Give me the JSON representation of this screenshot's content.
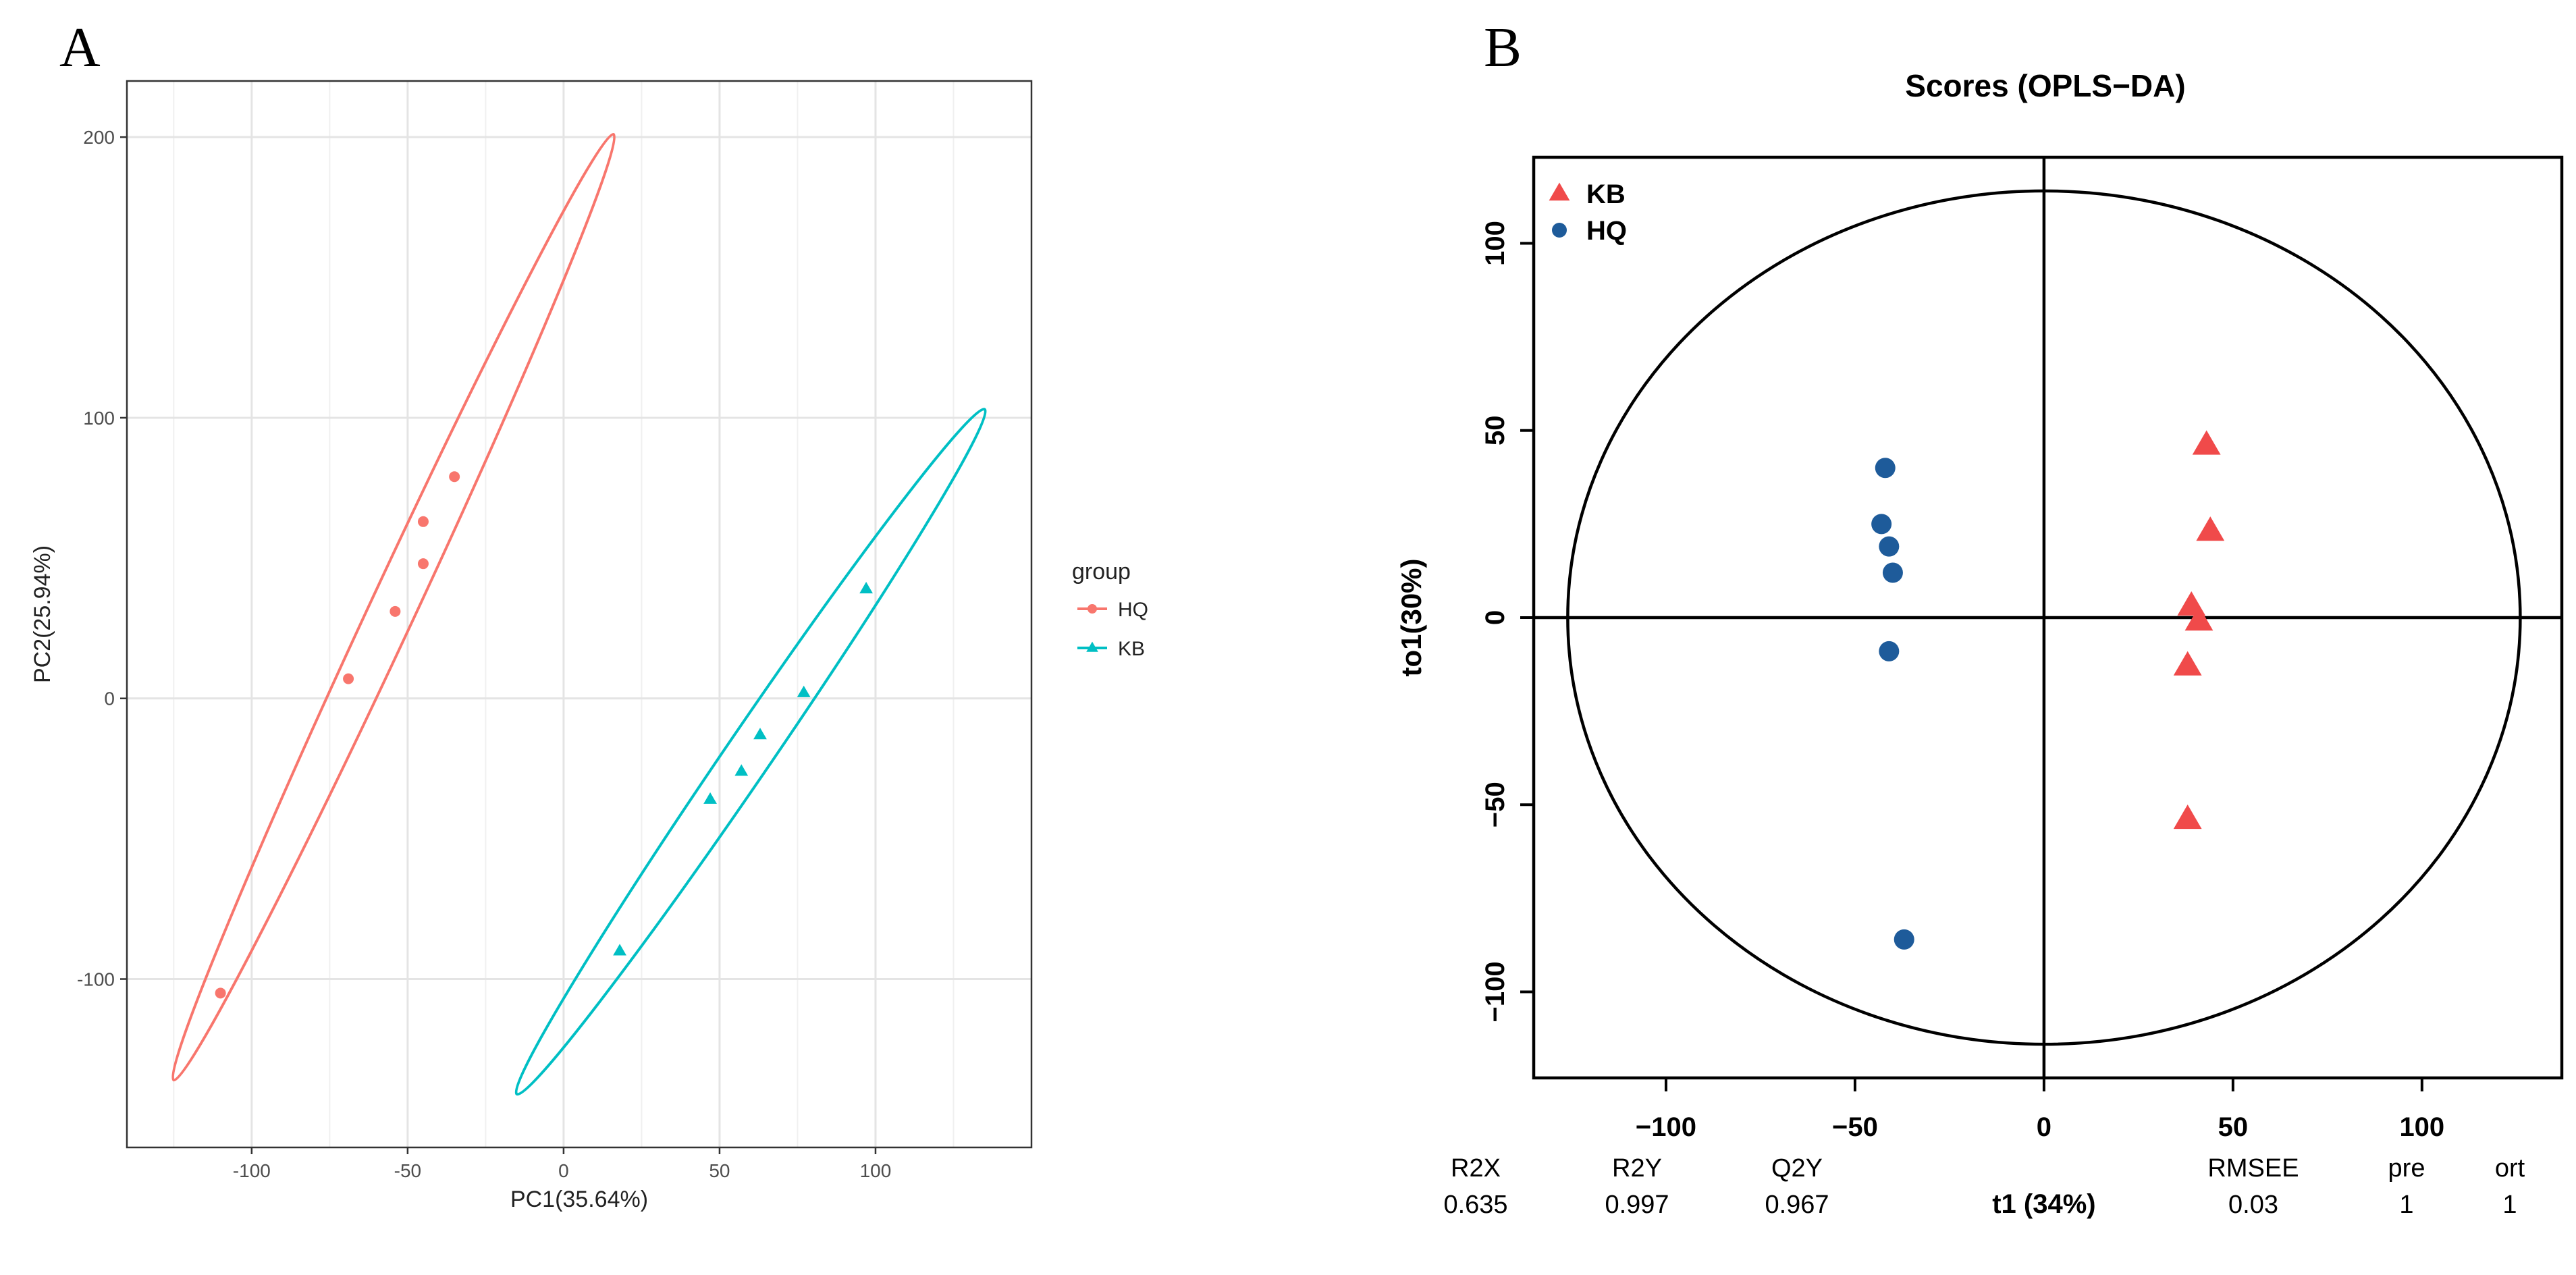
{
  "panels": {
    "a_letter": "A",
    "b_letter": "B"
  },
  "chart_data": [
    {
      "type": "scatter",
      "panel": "A",
      "title": "",
      "xlabel": "PC1(35.64%)",
      "ylabel": "PC2(25.94%)",
      "xlim": [
        -140,
        150
      ],
      "ylim": [
        -160,
        220
      ],
      "x_ticks": [
        -100,
        -50,
        0,
        50,
        100
      ],
      "y_ticks": [
        -100,
        0,
        100,
        200
      ],
      "x_tick_labels": [
        "-100",
        "-50",
        "0",
        "50",
        "100"
      ],
      "y_tick_labels": [
        "-100",
        "0",
        "100",
        "200"
      ],
      "grid": true,
      "legend": {
        "title": "group",
        "placement": "right",
        "entries": [
          "HQ",
          "KB"
        ]
      },
      "colors": {
        "HQ": "#F8766D",
        "KB": "#00BFC4"
      },
      "series": [
        {
          "name": "HQ",
          "marker": "circle",
          "points": [
            [
              -110,
              -105
            ],
            [
              -69,
              7
            ],
            [
              -54,
              31
            ],
            [
              -45,
              48
            ],
            [
              -45,
              63
            ],
            [
              -35,
              79
            ]
          ],
          "ellipse": [
            [
              -125,
              -136
            ],
            [
              16,
              201
            ]
          ]
        },
        {
          "name": "KB",
          "marker": "triangle",
          "points": [
            [
              18,
              -90
            ],
            [
              47,
              -36
            ],
            [
              57,
              -26
            ],
            [
              63,
              -13
            ],
            [
              77,
              2
            ],
            [
              97,
              39
            ]
          ],
          "ellipse": [
            [
              -15,
              -141
            ],
            [
              135,
              103
            ]
          ]
        }
      ]
    },
    {
      "type": "scatter",
      "panel": "B",
      "title": "Scores (OPLS−DA)",
      "xlabel": "t1 (34%)",
      "ylabel": "to1(30%)",
      "xlim": [
        -135,
        137
      ],
      "ylim": [
        -123,
        123
      ],
      "x_ticks": [
        -100,
        -50,
        0,
        50,
        100
      ],
      "y_ticks": [
        -100,
        -50,
        0,
        50,
        100
      ],
      "x_tick_labels": [
        "−100",
        "−50",
        "0",
        "50",
        "100"
      ],
      "y_tick_labels": [
        "−100",
        "−50",
        "0",
        "50",
        "100"
      ],
      "grid": false,
      "legend": {
        "placement": "top-left",
        "entries": [
          "KB",
          "HQ"
        ]
      },
      "colors": {
        "KB": "#F04A4A",
        "HQ": "#1E5B9A"
      },
      "series": [
        {
          "name": "KB",
          "marker": "triangle",
          "points": [
            [
              43,
              46
            ],
            [
              44,
              23
            ],
            [
              39,
              3
            ],
            [
              41,
              -1
            ],
            [
              38,
              -13
            ],
            [
              38,
              -54
            ]
          ]
        },
        {
          "name": "HQ",
          "marker": "circle",
          "points": [
            [
              -42,
              40
            ],
            [
              -43,
              25
            ],
            [
              -41,
              19
            ],
            [
              -40,
              12
            ],
            [
              -41,
              -9
            ],
            [
              -37,
              -86
            ]
          ]
        }
      ],
      "confidence_ellipse": {
        "rx": 126,
        "ry": 114
      },
      "stats": [
        {
          "label": "R2X",
          "value": "0.635"
        },
        {
          "label": "R2Y",
          "value": "0.997"
        },
        {
          "label": "Q2Y",
          "value": "0.967"
        },
        {
          "label": "RMSEE",
          "value": "0.03"
        },
        {
          "label": "pre",
          "value": "1"
        },
        {
          "label": "ort",
          "value": "1"
        }
      ]
    }
  ]
}
